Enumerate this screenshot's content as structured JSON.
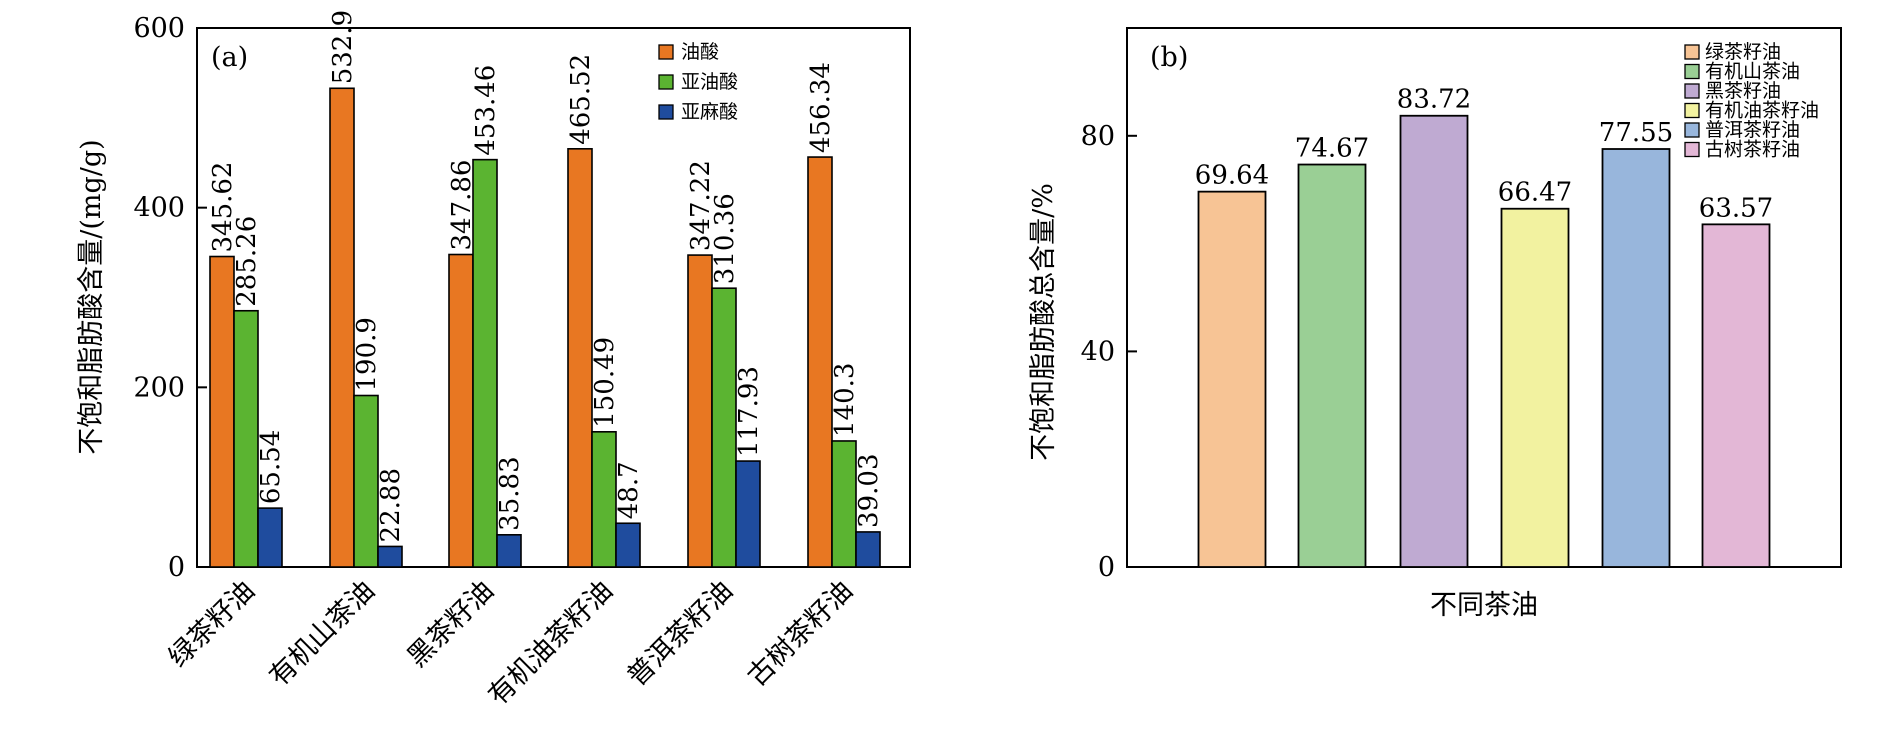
{
  "chart_data": [
    {
      "type": "bar",
      "panel_label": "(a)",
      "title": "",
      "xlabel": "",
      "ylabel": "不饱和脂肪酸含量/(mg/g)",
      "ylim": [
        0,
        600
      ],
      "yticks": [
        0,
        200,
        400,
        600
      ],
      "categories": [
        "绿茶籽油",
        "有机山茶油",
        "黑茶籽油",
        "有机油茶籽油",
        "普洱茶籽油",
        "古树茶籽油"
      ],
      "series": [
        {
          "name": "油酸",
          "color": "#E87722",
          "values": [
            345.62,
            532.9,
            347.86,
            465.52,
            347.22,
            456.34
          ],
          "labels": [
            "345.62",
            "532.9",
            "347.86",
            "465.52",
            "347.22",
            "456.34"
          ]
        },
        {
          "name": "亚油酸",
          "color": "#5BB431",
          "values": [
            285.26,
            190.9,
            453.46,
            150.49,
            310.36,
            140.3
          ],
          "labels": [
            "285.26",
            "190.9",
            "453.46",
            "150.49",
            "310.36",
            "140.3"
          ]
        },
        {
          "name": "亚麻酸",
          "color": "#1F4C9E",
          "values": [
            65.54,
            22.88,
            35.83,
            48.7,
            117.93,
            39.03
          ],
          "labels": [
            "65.54",
            "22.88",
            "35.83",
            "48.7",
            "117.93",
            "39.03"
          ]
        }
      ],
      "legend_position": "top-right",
      "grid": false
    },
    {
      "type": "bar",
      "panel_label": "(b)",
      "title": "",
      "xlabel": "不同茶油",
      "ylabel": "不饱和脂肪酸总含量/%",
      "ylim": [
        0,
        100
      ],
      "yticks": [
        0,
        40,
        80
      ],
      "categories": [
        "绿茶籽油",
        "有机山茶油",
        "黑茶籽油",
        "有机油茶籽油",
        "普洱茶籽油",
        "古树茶籽油"
      ],
      "values": [
        69.64,
        74.67,
        83.72,
        66.47,
        77.55,
        63.57
      ],
      "labels": [
        "69.64",
        "74.67",
        "83.72",
        "66.47",
        "77.55",
        "63.57"
      ],
      "colors": [
        "#F7C495",
        "#9ACF95",
        "#BFAAD2",
        "#F2F2A0",
        "#98B6DC",
        "#E3B7D6"
      ],
      "legend_position": "top-right",
      "grid": false
    }
  ]
}
